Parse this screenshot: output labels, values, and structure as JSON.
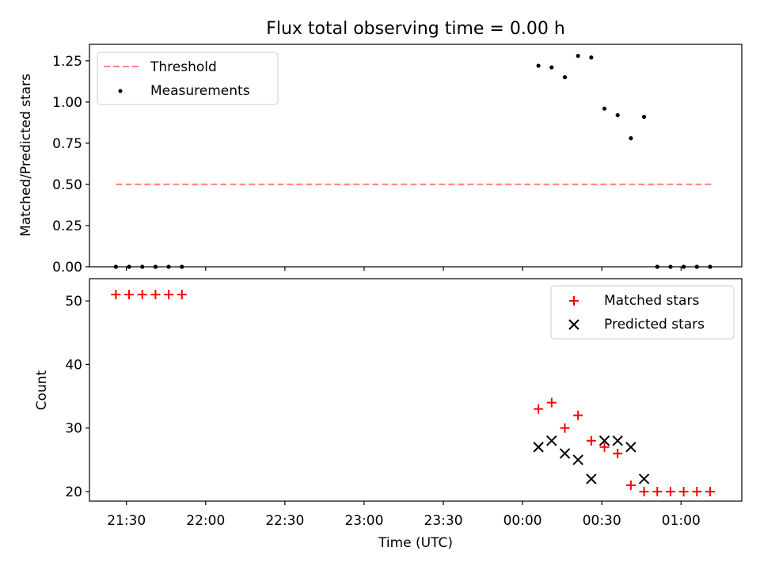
{
  "chart_data": [
    {
      "type": "scatter",
      "title": "Flux total observing time = 0.00 h",
      "xlabel": "",
      "ylabel": "Matched/Predicted stars",
      "ylim": [
        0.0,
        1.35
      ],
      "xlim_minutes_from_2130": [
        -14,
        233
      ],
      "yticks": [
        0.0,
        0.25,
        0.5,
        0.75,
        1.0,
        1.25
      ],
      "ytick_labels": [
        "0.00",
        "0.25",
        "0.50",
        "0.75",
        "1.00",
        "1.25"
      ],
      "legend_placement": "upper left",
      "series": [
        {
          "name": "Threshold",
          "style": "dashed-line",
          "color": "#ff7f7f",
          "x": [
            "21:26",
            "01:12"
          ],
          "y": [
            0.5,
            0.5
          ]
        },
        {
          "name": "Measurements",
          "style": "dot",
          "color": "#000000",
          "x": [
            "21:26",
            "21:31",
            "21:36",
            "21:41",
            "21:46",
            "21:51",
            "00:06",
            "00:11",
            "00:16",
            "00:21",
            "00:26",
            "00:31",
            "00:36",
            "00:41",
            "00:46",
            "00:51",
            "00:56",
            "01:01",
            "01:06",
            "01:11"
          ],
          "y": [
            0,
            0,
            0,
            0,
            0,
            0,
            1.22,
            1.21,
            1.15,
            1.28,
            1.27,
            0.96,
            0.92,
            0.78,
            0.91,
            0,
            0,
            0,
            0,
            0
          ]
        }
      ]
    },
    {
      "type": "scatter",
      "title": "",
      "xlabel": "Time (UTC)",
      "ylabel": "Count",
      "ylim": [
        18.5,
        53.5
      ],
      "yticks": [
        20,
        30,
        40,
        50
      ],
      "ytick_labels": [
        "20",
        "30",
        "40",
        "50"
      ],
      "xticks": [
        "21:30",
        "22:00",
        "22:30",
        "23:00",
        "23:30",
        "00:00",
        "00:30",
        "01:00"
      ],
      "legend_placement": "upper right",
      "series": [
        {
          "name": "Matched stars",
          "marker": "plus",
          "color": "#ff0000",
          "x": [
            "21:26",
            "21:31",
            "21:36",
            "21:41",
            "21:46",
            "21:51",
            "00:06",
            "00:11",
            "00:16",
            "00:21",
            "00:26",
            "00:31",
            "00:36",
            "00:41",
            "00:46",
            "00:51",
            "00:56",
            "01:01",
            "01:06",
            "01:11"
          ],
          "y": [
            51,
            51,
            51,
            51,
            51,
            51,
            33,
            34,
            30,
            32,
            28,
            27,
            26,
            21,
            20,
            20,
            20,
            20,
            20,
            20
          ]
        },
        {
          "name": "Predicted stars",
          "marker": "x",
          "color": "#000000",
          "x": [
            "00:06",
            "00:11",
            "00:16",
            "00:21",
            "00:26",
            "00:31",
            "00:36",
            "00:41",
            "00:46"
          ],
          "y": [
            27,
            28,
            26,
            25,
            22,
            28,
            28,
            27,
            22
          ]
        }
      ]
    }
  ]
}
